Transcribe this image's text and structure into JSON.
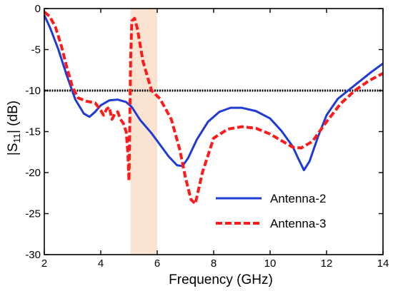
{
  "chart_data": {
    "type": "line",
    "xlabel": "Frequency  (GHz)",
    "ylabel": "|S11| (dB)",
    "ylabel_parts": {
      "pre": "|S",
      "sub": "11",
      "post": "| (dB)"
    },
    "xlim": [
      2,
      14
    ],
    "ylim": [
      -30,
      0
    ],
    "x_ticks": [
      2,
      4,
      6,
      8,
      10,
      12,
      14
    ],
    "y_ticks": [
      0,
      -5,
      -10,
      -15,
      -20,
      -25,
      -30
    ],
    "x_tick_labels": [
      "2",
      "4",
      "6",
      "8",
      "10",
      "12",
      "14"
    ],
    "y_tick_labels": [
      "0",
      "-5",
      "-10",
      "-15",
      "-20",
      "-25",
      "-30"
    ],
    "grid": false,
    "legend_position": "bottom-right",
    "reference_line": {
      "y": -10,
      "color": "#000000",
      "style": "dotted"
    },
    "highlight_band": {
      "x": [
        5.05,
        6.0
      ],
      "color": "#fbe3d2"
    },
    "series": [
      {
        "name": "Antenna-2",
        "color": "#1f3bd6",
        "style": "solid",
        "x": [
          2.0,
          2.2,
          2.5,
          2.8,
          3.1,
          3.4,
          3.6,
          3.8,
          4.0,
          4.3,
          4.6,
          4.9,
          5.1,
          5.4,
          5.8,
          6.1,
          6.4,
          6.7,
          6.9,
          7.1,
          7.4,
          7.8,
          8.2,
          8.6,
          9.0,
          9.5,
          10.0,
          10.4,
          10.8,
          11.0,
          11.2,
          11.4,
          11.7,
          12.0,
          12.4,
          12.8,
          13.2,
          13.6,
          14.0
        ],
        "y": [
          -0.8,
          -2.3,
          -5.0,
          -8.2,
          -11.1,
          -12.8,
          -13.2,
          -12.6,
          -11.8,
          -11.2,
          -11.1,
          -11.4,
          -12.0,
          -13.6,
          -15.2,
          -16.6,
          -18.0,
          -19.1,
          -19.2,
          -18.2,
          -16.0,
          -13.8,
          -12.6,
          -12.1,
          -12.1,
          -12.5,
          -13.4,
          -14.9,
          -16.8,
          -18.3,
          -19.7,
          -18.6,
          -15.6,
          -13.0,
          -11.0,
          -9.9,
          -8.8,
          -7.7,
          -6.7
        ]
      },
      {
        "name": "Antenna-3",
        "color": "#ff1a1a",
        "style": "dashed",
        "x": [
          2.0,
          2.2,
          2.4,
          2.6,
          2.8,
          3.0,
          3.2,
          3.5,
          3.8,
          4.0,
          4.1,
          4.2,
          4.3,
          4.4,
          4.5,
          4.6,
          4.7,
          4.8,
          4.9,
          4.96,
          5.0,
          5.06,
          5.1,
          5.2,
          5.3,
          5.5,
          5.8,
          6.1,
          6.5,
          6.8,
          7.0,
          7.2,
          7.35,
          7.6,
          8.0,
          8.5,
          9.0,
          9.5,
          10.0,
          10.5,
          10.8,
          11.1,
          11.5,
          12.0,
          12.5,
          13.0,
          13.5,
          14.0
        ],
        "y": [
          -0.4,
          -1.0,
          -2.3,
          -4.5,
          -7.2,
          -9.6,
          -10.9,
          -11.3,
          -11.5,
          -12.4,
          -13.0,
          -12.3,
          -12.0,
          -13.5,
          -12.8,
          -12.6,
          -13.5,
          -14.0,
          -15.0,
          -17.5,
          -21.0,
          -6.0,
          -1.5,
          -1.2,
          -2.5,
          -6.5,
          -10.0,
          -11.0,
          -13.5,
          -17.2,
          -20.6,
          -23.3,
          -23.8,
          -20.0,
          -15.8,
          -14.7,
          -14.4,
          -14.6,
          -15.3,
          -16.3,
          -16.9,
          -17.0,
          -16.2,
          -13.8,
          -11.6,
          -10.0,
          -8.8,
          -7.9
        ]
      }
    ]
  }
}
